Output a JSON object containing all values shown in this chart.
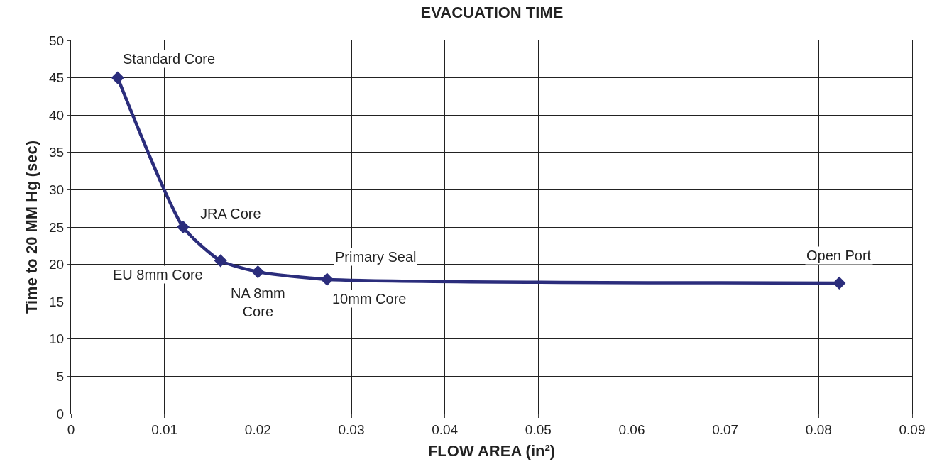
{
  "chart_data": {
    "type": "line",
    "title": "EVACUATION TIME",
    "xlabel": "FLOW AREA (in²)",
    "ylabel": "Time to 20 MM Hg (sec)",
    "x": [
      0.005,
      0.012,
      0.016,
      0.02,
      0.0274,
      0.0822
    ],
    "series": [
      {
        "color": "#2b2d7c",
        "values": [
          45,
          25,
          20.5,
          19,
          18,
          17.5
        ]
      }
    ],
    "xlim": [
      0,
      0.09
    ],
    "xticks": [
      0,
      0.01,
      0.02,
      0.03,
      0.04,
      0.05,
      0.06,
      0.07,
      0.08,
      0.09
    ],
    "ylim": [
      0,
      50
    ],
    "yticks": [
      0,
      5,
      10,
      15,
      20,
      25,
      30,
      35,
      40,
      45,
      50
    ],
    "grid": true,
    "marker": "diamond",
    "line_style": "solid",
    "annotations": [
      {
        "text": "Standard Core",
        "x": 0.005,
        "y": 45
      },
      {
        "text": "JRA Core",
        "x": 0.012,
        "y": 25
      },
      {
        "text": "EU 8mm Core",
        "x": 0.016,
        "y": 20.5
      },
      {
        "text": "NA 8mm\nCore",
        "x": 0.02,
        "y": 19
      },
      {
        "text": "Primary Seal",
        "x": 0.0274,
        "y": 18
      },
      {
        "text": "10mm Core",
        "x": 0.0274,
        "y": 18
      },
      {
        "text": "Open Port",
        "x": 0.0822,
        "y": 17.5
      }
    ]
  }
}
